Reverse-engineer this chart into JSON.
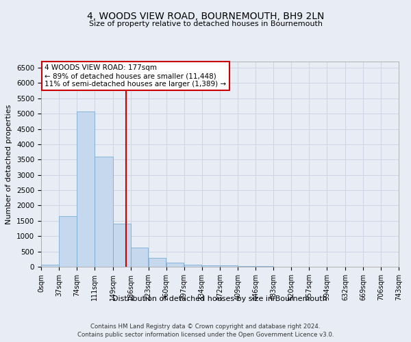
{
  "title": "4, WOODS VIEW ROAD, BOURNEMOUTH, BH9 2LN",
  "subtitle": "Size of property relative to detached houses in Bournemouth",
  "xlabel": "Distribution of detached houses by size in Bournemouth",
  "ylabel": "Number of detached properties",
  "bin_edges": [
    0,
    37,
    74,
    111,
    149,
    186,
    223,
    260,
    297,
    334,
    372,
    409,
    446,
    483,
    520,
    557,
    594,
    632,
    669,
    706,
    743
  ],
  "bar_heights": [
    75,
    1650,
    5075,
    3600,
    1400,
    620,
    300,
    140,
    75,
    50,
    35,
    25,
    15,
    10,
    8,
    5,
    4,
    3,
    2,
    2
  ],
  "bar_color": "#c5d8ee",
  "bar_edge_color": "#7aadd4",
  "property_line_x": 177,
  "property_line_color": "#cc0000",
  "ylim": [
    0,
    6700
  ],
  "yticks": [
    0,
    500,
    1000,
    1500,
    2000,
    2500,
    3000,
    3500,
    4000,
    4500,
    5000,
    5500,
    6000,
    6500
  ],
  "annotation_title": "4 WOODS VIEW ROAD: 177sqm",
  "annotation_line1": "← 89% of detached houses are smaller (11,448)",
  "annotation_line2": "11% of semi-detached houses are larger (1,389) →",
  "annotation_box_color": "#ffffff",
  "annotation_box_edge": "#cc0000",
  "grid_color": "#cdd5e5",
  "background_color": "#e8edf5",
  "footer1": "Contains HM Land Registry data © Crown copyright and database right 2024.",
  "footer2": "Contains public sector information licensed under the Open Government Licence v3.0."
}
